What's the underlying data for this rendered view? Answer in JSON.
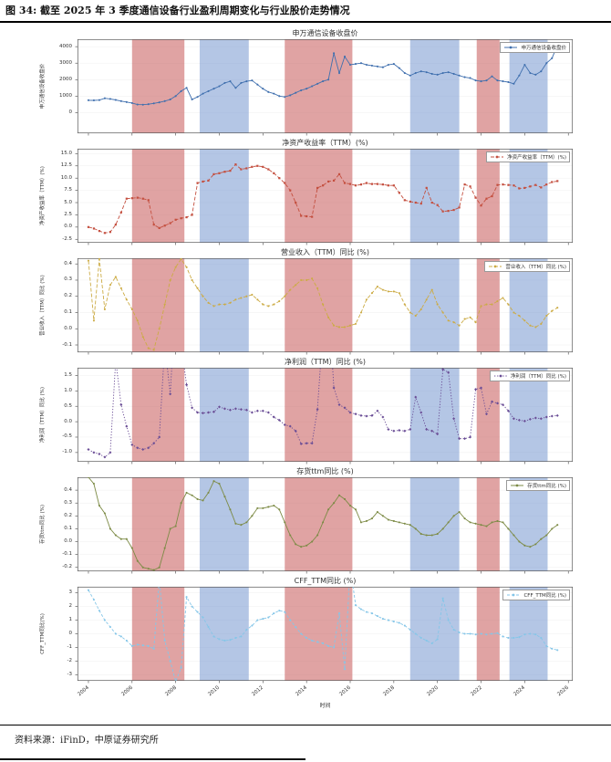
{
  "header": {
    "title": "图 34: 截至 2025 年 3 季度通信设备行业盈利周期变化与行业股价走势情况"
  },
  "footer": {
    "source_label": "资料来源：iFinD，中原证券研究所"
  },
  "chart_data": {
    "type": "line",
    "x_start": 2004,
    "x_step": 0.25,
    "x_axis": {
      "label": "时间",
      "range": [
        2003.5,
        2026.2
      ],
      "ticks": [
        "2004",
        "2006",
        "2008",
        "2010",
        "2012",
        "2014",
        "2016",
        "2018",
        "2020",
        "2022",
        "2024",
        "2026"
      ]
    },
    "band_colors": {
      "red": "rgba(198,88,88,0.55)",
      "blue": "rgba(118,152,208,0.55)"
    },
    "bands": [
      {
        "color": "red",
        "from": 2006.0,
        "to": 2008.4
      },
      {
        "color": "blue",
        "from": 2009.1,
        "to": 2011.35
      },
      {
        "color": "red",
        "from": 2013.0,
        "to": 2016.1
      },
      {
        "color": "blue",
        "from": 2018.75,
        "to": 2021.0
      },
      {
        "color": "red",
        "from": 2021.8,
        "to": 2022.85
      },
      {
        "color": "blue",
        "from": 2023.3,
        "to": 2025.05
      }
    ],
    "charts": [
      {
        "id": "close-price",
        "title": "申万通信设备收盘价",
        "legend": "申万通信设备收盘价",
        "ylabel": "申万通信设备收盘价",
        "color": "#3f6fae",
        "dash": "",
        "marker": "circle",
        "ylim": [
          -1250,
          4450
        ],
        "yticks": [
          "0",
          "1000",
          "2000",
          "3000",
          "4000"
        ],
        "values": [
          750,
          745,
          760,
          870,
          830,
          770,
          700,
          640,
          580,
          490,
          480,
          510,
          560,
          620,
          700,
          800,
          1000,
          1300,
          1500,
          800,
          950,
          1150,
          1300,
          1450,
          1600,
          1800,
          1900,
          1500,
          1800,
          1900,
          1950,
          1700,
          1450,
          1250,
          1150,
          1000,
          950,
          1050,
          1200,
          1350,
          1450,
          1600,
          1750,
          1900,
          2000,
          3600,
          2400,
          3400,
          2900,
          2950,
          3000,
          2900,
          2850,
          2800,
          2750,
          2900,
          2950,
          2700,
          2400,
          2250,
          2400,
          2500,
          2450,
          2350,
          2300,
          2400,
          2450,
          2350,
          2250,
          2150,
          2100,
          1950,
          1900,
          1950,
          2200,
          1950,
          1900,
          1850,
          1750,
          2250,
          2900,
          2400,
          2300,
          2500,
          3000,
          3300,
          4100
        ]
      },
      {
        "id": "roe-ttm",
        "title": "净资产收益率（TTM）(%)",
        "legend": "净资产收益率（TTM）(%)",
        "ylabel": "净资产收益率（TTM）(%)",
        "color": "#c44f3f",
        "dash": "4,2",
        "marker": "square",
        "ylim": [
          -3.2,
          16.0
        ],
        "yticks": [
          "-2.5",
          "0.0",
          "2.5",
          "5.0",
          "7.5",
          "10.0",
          "12.5",
          "15.0"
        ],
        "values": [
          0.0,
          -0.3,
          -0.8,
          -1.2,
          -1.0,
          0.5,
          3.0,
          5.8,
          5.9,
          6.0,
          5.8,
          5.5,
          0.5,
          -0.2,
          0.3,
          0.8,
          1.5,
          1.8,
          2.0,
          2.5,
          9.0,
          9.3,
          9.5,
          10.8,
          11.0,
          11.3,
          11.5,
          12.8,
          11.8,
          12.0,
          12.3,
          12.5,
          12.3,
          11.8,
          11.0,
          10.0,
          9.0,
          7.5,
          5.0,
          2.3,
          2.2,
          2.1,
          8.0,
          8.5,
          9.3,
          9.5,
          10.8,
          9.0,
          8.8,
          8.5,
          8.7,
          9.0,
          8.8,
          8.8,
          8.7,
          8.5,
          8.5,
          7.0,
          5.5,
          5.2,
          5.0,
          4.8,
          8.0,
          5.0,
          4.5,
          3.2,
          3.3,
          3.5,
          4.0,
          8.7,
          8.3,
          6.0,
          4.4,
          5.8,
          6.3,
          8.6,
          8.7,
          8.6,
          8.5,
          7.9,
          8.0,
          8.3,
          8.6,
          8.1,
          8.7,
          9.2,
          9.4
        ]
      },
      {
        "id": "revenue-yoy",
        "title": "营业收入（TTM）同比 (%)",
        "legend": "营业收入（TTM）同比 (%)",
        "ylabel": "营业收入（TTM）同比 (%)",
        "color": "#ccab44",
        "dash": "4,2",
        "marker": "circle",
        "ylim": [
          -0.145,
          0.435
        ],
        "yticks": [
          "-0.1",
          "0.0",
          "0.1",
          "0.2",
          "0.3",
          "0.4"
        ],
        "values": [
          0.42,
          0.05,
          0.43,
          0.12,
          0.27,
          0.32,
          0.25,
          0.18,
          0.12,
          0.05,
          -0.05,
          -0.12,
          -0.13,
          0.0,
          0.15,
          0.3,
          0.38,
          0.43,
          0.38,
          0.3,
          0.25,
          0.2,
          0.16,
          0.14,
          0.15,
          0.15,
          0.16,
          0.18,
          0.19,
          0.2,
          0.21,
          0.18,
          0.15,
          0.14,
          0.15,
          0.17,
          0.2,
          0.24,
          0.27,
          0.3,
          0.3,
          0.31,
          0.25,
          0.15,
          0.07,
          0.02,
          0.01,
          0.01,
          0.02,
          0.03,
          0.1,
          0.18,
          0.22,
          0.26,
          0.24,
          0.23,
          0.23,
          0.22,
          0.15,
          0.1,
          0.08,
          0.12,
          0.18,
          0.24,
          0.15,
          0.1,
          0.05,
          0.04,
          0.02,
          0.06,
          0.07,
          0.04,
          0.14,
          0.15,
          0.15,
          0.17,
          0.19,
          0.15,
          0.1,
          0.08,
          0.05,
          0.02,
          0.01,
          0.03,
          0.08,
          0.11,
          0.13
        ]
      },
      {
        "id": "net-profit-yoy",
        "title": "净利润（TTM）同比 (%)",
        "legend": "净利润（TTM）同比 (%)",
        "ylabel": "净利润（TTM）同比 (%)",
        "color": "#6a4d96",
        "dash": "1.3,1.8",
        "marker": "diamond",
        "ylim": [
          -1.3,
          1.75
        ],
        "yticks": [
          "-1.0",
          "-0.5",
          "0.0",
          "0.5",
          "1.0",
          "1.5"
        ],
        "values": [
          -0.9,
          -1.0,
          -1.05,
          -1.15,
          -1.0,
          2.0,
          0.55,
          -0.15,
          -0.75,
          -0.85,
          -0.9,
          -0.85,
          -0.7,
          -0.5,
          2.5,
          0.9,
          4.0,
          2.5,
          1.2,
          0.45,
          0.3,
          0.28,
          0.3,
          0.32,
          0.48,
          0.42,
          0.38,
          0.42,
          0.4,
          0.38,
          0.3,
          0.35,
          0.35,
          0.3,
          0.15,
          0.05,
          -0.1,
          -0.15,
          -0.3,
          -0.72,
          -0.7,
          -0.7,
          0.4,
          3.0,
          4.0,
          1.1,
          0.55,
          0.45,
          0.3,
          0.25,
          0.2,
          0.18,
          0.2,
          0.35,
          0.15,
          -0.25,
          -0.3,
          -0.28,
          -0.3,
          -0.25,
          0.8,
          0.3,
          -0.25,
          -0.3,
          -0.4,
          1.7,
          1.6,
          0.1,
          -0.55,
          -0.55,
          -0.5,
          1.05,
          1.1,
          0.25,
          0.65,
          0.6,
          0.55,
          0.35,
          0.1,
          0.05,
          0.02,
          0.08,
          0.12,
          0.1,
          0.15,
          0.18,
          0.2
        ]
      },
      {
        "id": "inventory-yoy",
        "title": "存货ttm同比 (%)",
        "legend": "存货ttm同比 (%)",
        "ylabel": "存货ttm同比 (%)",
        "color": "#7d8b46",
        "dash": "",
        "marker": "circle",
        "ylim": [
          -0.23,
          0.5
        ],
        "yticks": [
          "-0.2",
          "-0.1",
          "0.0",
          "0.1",
          "0.2",
          "0.3",
          "0.4"
        ],
        "values": [
          0.5,
          0.45,
          0.28,
          0.22,
          0.1,
          0.05,
          0.02,
          0.02,
          -0.05,
          -0.15,
          -0.2,
          -0.21,
          -0.22,
          -0.2,
          -0.05,
          0.1,
          0.12,
          0.3,
          0.38,
          0.36,
          0.33,
          0.32,
          0.38,
          0.47,
          0.45,
          0.35,
          0.25,
          0.14,
          0.13,
          0.15,
          0.2,
          0.26,
          0.26,
          0.27,
          0.28,
          0.25,
          0.15,
          0.05,
          -0.02,
          -0.04,
          -0.03,
          0.0,
          0.05,
          0.15,
          0.25,
          0.3,
          0.36,
          0.33,
          0.28,
          0.25,
          0.15,
          0.16,
          0.18,
          0.23,
          0.2,
          0.17,
          0.16,
          0.15,
          0.14,
          0.13,
          0.1,
          0.06,
          0.05,
          0.05,
          0.06,
          0.1,
          0.15,
          0.2,
          0.23,
          0.18,
          0.15,
          0.14,
          0.13,
          0.12,
          0.15,
          0.16,
          0.15,
          0.1,
          0.05,
          0.0,
          -0.03,
          -0.04,
          -0.02,
          0.02,
          0.05,
          0.1,
          0.13
        ]
      },
      {
        "id": "cff-ttm-yoy",
        "title": "CFF_TTM同比 (%)",
        "legend": "CFF_TTM同比 (%)",
        "ylabel": "CFF_TTM同比(%)",
        "color": "#85c6e8",
        "dash": "3,2",
        "marker": "circle",
        "ylim": [
          -3.45,
          3.45
        ],
        "yticks": [
          "-3",
          "-2",
          "-1",
          "0",
          "1",
          "2",
          "3"
        ],
        "values": [
          3.2,
          2.5,
          1.7,
          1.0,
          0.5,
          0.0,
          -0.2,
          -0.5,
          -0.9,
          -0.8,
          -0.85,
          -0.9,
          -1.1,
          4.0,
          -0.5,
          -2.0,
          -3.5,
          -2.5,
          2.7,
          2.0,
          1.6,
          1.2,
          0.5,
          -0.2,
          -0.4,
          -0.5,
          -0.45,
          -0.3,
          -0.2,
          0.3,
          0.6,
          1.0,
          1.1,
          1.2,
          1.5,
          1.7,
          1.6,
          1.0,
          0.5,
          0.0,
          -0.3,
          -0.5,
          -0.6,
          -0.7,
          -0.9,
          -1.0,
          1.5,
          -2.6,
          5.0,
          2.1,
          1.8,
          1.6,
          1.5,
          1.3,
          1.1,
          1.0,
          0.9,
          0.8,
          0.6,
          0.3,
          0.0,
          -0.3,
          -0.5,
          -0.7,
          -0.4,
          2.6,
          1.0,
          0.3,
          0.1,
          0.0,
          0.0,
          -0.05,
          0.0,
          -0.05,
          0.0,
          0.05,
          -0.2,
          -0.3,
          -0.3,
          -0.25,
          -0.05,
          0.0,
          -0.05,
          -0.3,
          -0.9,
          -1.1,
          -1.2
        ]
      }
    ]
  }
}
